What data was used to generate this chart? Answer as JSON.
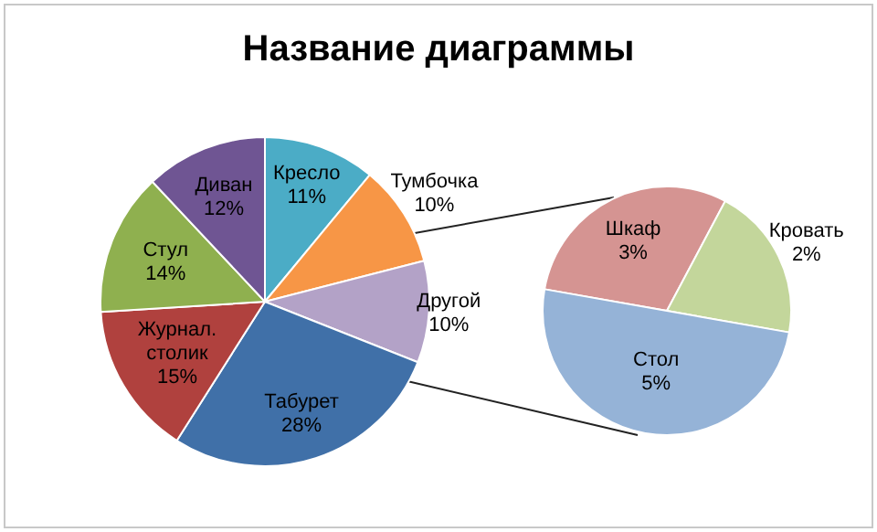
{
  "chart_data": [
    {
      "type": "pie",
      "title": "Название диаграммы",
      "categories": [
        "Кресло",
        "Тумбочка",
        "Другой",
        "Табурет",
        "Журнал. столик",
        "Стул",
        "Диван"
      ],
      "values": [
        11,
        10,
        10,
        28,
        15,
        14,
        12
      ],
      "value_labels": [
        "11%",
        "10%",
        "10%",
        "28%",
        "15%",
        "14%",
        "12%"
      ],
      "colors": [
        "#4bacc6",
        "#f79646",
        "#b3a2c7",
        "#4070a8",
        "#b0413e",
        "#8fb04f",
        "#6f5593"
      ]
    },
    {
      "type": "pie",
      "categories": [
        "Шкаф",
        "Кровать",
        "Стол"
      ],
      "values": [
        3,
        2,
        5
      ],
      "value_labels": [
        "3%",
        "2%",
        "5%"
      ],
      "colors": [
        "#d59492",
        "#c3d69b",
        "#95b3d7"
      ]
    }
  ]
}
